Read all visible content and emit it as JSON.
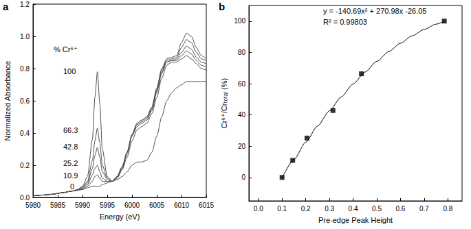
{
  "chart_data": [
    {
      "type": "line",
      "title": "a",
      "x_label": "Energy (eV)",
      "y_label": "Normalized Absorbance",
      "xlim": [
        5980,
        6015
      ],
      "xticks": [
        5980,
        5985,
        5990,
        5995,
        6000,
        6005,
        6010,
        6015
      ],
      "ylim": [
        0,
        1.2
      ],
      "yticks": [
        {
          "value": 0,
          "label": "0.0"
        },
        {
          "value": 0.2,
          "label": "0.2"
        },
        {
          "value": 0.4,
          "label": "0.4"
        },
        {
          "value": 0.6,
          "label": "0.6"
        },
        {
          "value": 0.8,
          "label": "0.8"
        },
        {
          "value": 1.0,
          "label": "1.0"
        },
        {
          "value": 1.2,
          "label": "1.2"
        }
      ],
      "grid": false,
      "annotations": [
        "% Cr⁶⁺",
        "100",
        "66.3",
        "42.8",
        "25.2",
        "10.9",
        "0"
      ],
      "x": [
        5980,
        5982,
        5984,
        5986,
        5988,
        5989,
        5990,
        5991,
        5992,
        5992.5,
        5993,
        5993.5,
        5994,
        5995,
        5996,
        5997,
        5998,
        5999,
        6000,
        6001,
        6002,
        6003,
        6004,
        6005,
        6006,
        6007,
        6008,
        6009,
        6010,
        6011,
        6012,
        6013,
        6014,
        6015
      ],
      "series": [
        {
          "color": "#4d4d4d",
          "line_style": "solid",
          "values": [
            0.01,
            0.015,
            0.02,
            0.03,
            0.04,
            0.05,
            0.07,
            0.13,
            0.36,
            0.62,
            0.78,
            0.58,
            0.3,
            0.13,
            0.1,
            0.11,
            0.13,
            0.16,
            0.2,
            0.22,
            0.22,
            0.23,
            0.28,
            0.38,
            0.5,
            0.6,
            0.65,
            0.68,
            0.7,
            0.72,
            0.72,
            0.72,
            0.72,
            0.72
          ]
        },
        {
          "color": "#4d4d4d",
          "line_style": "solid",
          "values": [
            0.01,
            0.015,
            0.02,
            0.03,
            0.04,
            0.05,
            0.065,
            0.1,
            0.23,
            0.35,
            0.43,
            0.34,
            0.2,
            0.12,
            0.1,
            0.12,
            0.17,
            0.25,
            0.35,
            0.42,
            0.44,
            0.46,
            0.52,
            0.62,
            0.74,
            0.82,
            0.84,
            0.84,
            0.86,
            0.88,
            0.86,
            0.83,
            0.8,
            0.79
          ]
        },
        {
          "color": "#4d4d4d",
          "line_style": "solid",
          "values": [
            0.01,
            0.015,
            0.02,
            0.03,
            0.04,
            0.045,
            0.06,
            0.09,
            0.18,
            0.26,
            0.31,
            0.25,
            0.16,
            0.11,
            0.1,
            0.12,
            0.18,
            0.27,
            0.38,
            0.44,
            0.46,
            0.48,
            0.54,
            0.65,
            0.77,
            0.84,
            0.85,
            0.85,
            0.88,
            0.91,
            0.89,
            0.85,
            0.82,
            0.81
          ]
        },
        {
          "color": "#4d4d4d",
          "line_style": "solid",
          "values": [
            0.01,
            0.015,
            0.02,
            0.03,
            0.04,
            0.045,
            0.055,
            0.08,
            0.14,
            0.18,
            0.2,
            0.16,
            0.12,
            0.1,
            0.1,
            0.13,
            0.19,
            0.28,
            0.39,
            0.45,
            0.47,
            0.49,
            0.55,
            0.66,
            0.78,
            0.84,
            0.85,
            0.86,
            0.9,
            0.94,
            0.92,
            0.87,
            0.84,
            0.83
          ]
        },
        {
          "color": "#4d4d4d",
          "line_style": "solid",
          "values": [
            0.01,
            0.015,
            0.02,
            0.03,
            0.04,
            0.045,
            0.05,
            0.07,
            0.1,
            0.13,
            0.14,
            0.12,
            0.1,
            0.1,
            0.1,
            0.13,
            0.19,
            0.28,
            0.39,
            0.46,
            0.48,
            0.5,
            0.56,
            0.67,
            0.79,
            0.85,
            0.86,
            0.87,
            0.93,
            0.98,
            0.96,
            0.9,
            0.86,
            0.85
          ]
        },
        {
          "color": "#4d4d4d",
          "line_style": "solid",
          "values": [
            0.01,
            0.015,
            0.02,
            0.03,
            0.04,
            0.045,
            0.05,
            0.06,
            0.07,
            0.07,
            0.07,
            0.07,
            0.08,
            0.09,
            0.1,
            0.13,
            0.19,
            0.28,
            0.39,
            0.46,
            0.48,
            0.5,
            0.56,
            0.68,
            0.8,
            0.86,
            0.87,
            0.88,
            0.96,
            1.02,
            1.0,
            0.93,
            0.88,
            0.86
          ]
        }
      ]
    },
    {
      "type": "scatter",
      "title": "b",
      "x_label": "Pre-edge Peak Height",
      "y_label": "Cr⁶⁺/Crₜₒₜₐₗ (%)",
      "xlim": [
        -0.04,
        0.86
      ],
      "xticks": [
        {
          "value": 0,
          "label": "0.0"
        },
        {
          "value": 0.1,
          "label": "0.1"
        },
        {
          "value": 0.2,
          "label": "0.2"
        },
        {
          "value": 0.3,
          "label": "0.3"
        },
        {
          "value": 0.4,
          "label": "0.4"
        },
        {
          "value": 0.5,
          "label": "0.5"
        },
        {
          "value": 0.6,
          "label": "0.6"
        },
        {
          "value": 0.7,
          "label": "0.7"
        },
        {
          "value": 0.8,
          "label": "0.8"
        }
      ],
      "ylim": [
        -15,
        110
      ],
      "yticks": [
        0,
        20,
        40,
        60,
        80,
        100
      ],
      "grid": false,
      "annotations": [
        "y = -140.69x² + 270.98x -26.05",
        "R² = 0.99803"
      ],
      "series": [
        {
          "type": "scatter",
          "marker": "square",
          "color": "#000000",
          "x": [
            0.1,
            0.145,
            0.205,
            0.315,
            0.435,
            0.785
          ],
          "values": [
            0,
            10.9,
            25.2,
            42.8,
            66.3,
            100
          ]
        },
        {
          "type": "line",
          "line_style": "solid",
          "color": "#000000",
          "x": [
            0.1,
            0.15,
            0.2,
            0.25,
            0.3,
            0.35,
            0.4,
            0.45,
            0.5,
            0.55,
            0.6,
            0.65,
            0.7,
            0.75,
            0.785
          ],
          "values": [
            -0.36,
            11.43,
            22.52,
            32.91,
            42.58,
            51.56,
            59.83,
            67.4,
            74.27,
            80.43,
            85.89,
            90.65,
            94.7,
            98.05,
            99.97
          ]
        }
      ]
    }
  ]
}
